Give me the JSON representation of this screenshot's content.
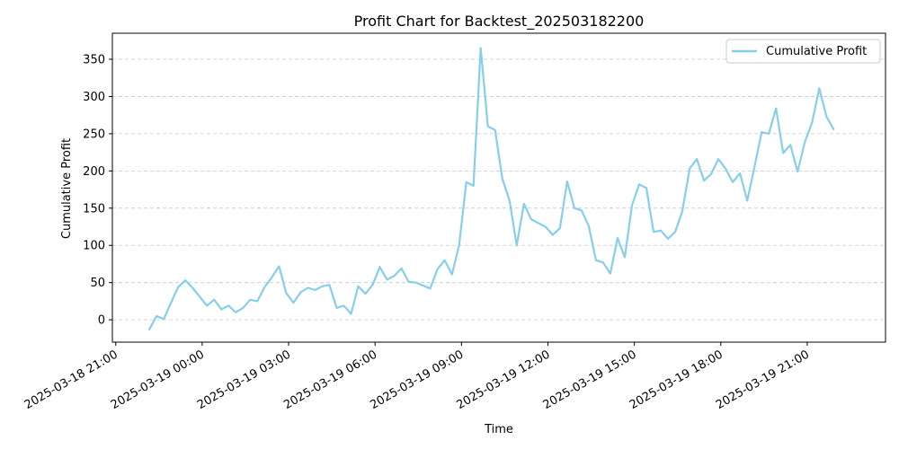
{
  "chart_data": {
    "type": "line",
    "title": "Profit Chart for Backtest_202503182200",
    "xlabel": "Time",
    "ylabel": "Cumulative Profit",
    "ylim": [
      -30,
      385
    ],
    "xlim": [
      "2025-03-18 20:53",
      "2025-03-19 23:43"
    ],
    "yticks": [
      0,
      50,
      100,
      150,
      200,
      250,
      300,
      350
    ],
    "xticks": [
      "2025-03-18 21:00",
      "2025-03-19 00:00",
      "2025-03-19 03:00",
      "2025-03-19 06:00",
      "2025-03-19 09:00",
      "2025-03-19 12:00",
      "2025-03-19 15:00",
      "2025-03-19 18:00",
      "2025-03-19 21:00"
    ],
    "grid": "y-dashed",
    "legend_position": "top-right",
    "line_color": "#87ceeb",
    "series": [
      {
        "name": "Cumulative Profit",
        "x": [
          "2025-03-18 22:10",
          "2025-03-18 22:25",
          "2025-03-18 22:40",
          "2025-03-18 22:55",
          "2025-03-18 23:10",
          "2025-03-18 23:25",
          "2025-03-18 23:40",
          "2025-03-18 23:55",
          "2025-03-19 00:10",
          "2025-03-19 00:25",
          "2025-03-19 00:40",
          "2025-03-19 00:55",
          "2025-03-19 01:10",
          "2025-03-19 01:25",
          "2025-03-19 01:40",
          "2025-03-19 01:55",
          "2025-03-19 02:10",
          "2025-03-19 02:25",
          "2025-03-19 02:40",
          "2025-03-19 02:55",
          "2025-03-19 03:10",
          "2025-03-19 03:25",
          "2025-03-19 03:40",
          "2025-03-19 03:55",
          "2025-03-19 04:10",
          "2025-03-19 04:25",
          "2025-03-19 04:40",
          "2025-03-19 04:55",
          "2025-03-19 05:10",
          "2025-03-19 05:25",
          "2025-03-19 05:40",
          "2025-03-19 05:55",
          "2025-03-19 06:10",
          "2025-03-19 06:25",
          "2025-03-19 06:40",
          "2025-03-19 06:55",
          "2025-03-19 07:10",
          "2025-03-19 07:25",
          "2025-03-19 07:40",
          "2025-03-19 07:55",
          "2025-03-19 08:10",
          "2025-03-19 08:25",
          "2025-03-19 08:40",
          "2025-03-19 08:55",
          "2025-03-19 09:10",
          "2025-03-19 09:25",
          "2025-03-19 09:40",
          "2025-03-19 09:55",
          "2025-03-19 10:10",
          "2025-03-19 10:25",
          "2025-03-19 10:40",
          "2025-03-19 10:55",
          "2025-03-19 11:10",
          "2025-03-19 11:25",
          "2025-03-19 11:40",
          "2025-03-19 11:55",
          "2025-03-19 12:10",
          "2025-03-19 12:25",
          "2025-03-19 12:40",
          "2025-03-19 12:55",
          "2025-03-19 13:10",
          "2025-03-19 13:25",
          "2025-03-19 13:40",
          "2025-03-19 13:55",
          "2025-03-19 14:10",
          "2025-03-19 14:25",
          "2025-03-19 14:40",
          "2025-03-19 14:55",
          "2025-03-19 15:10",
          "2025-03-19 15:25",
          "2025-03-19 15:40",
          "2025-03-19 15:55",
          "2025-03-19 16:10",
          "2025-03-19 16:25",
          "2025-03-19 16:40",
          "2025-03-19 16:55",
          "2025-03-19 17:10",
          "2025-03-19 17:25",
          "2025-03-19 17:40",
          "2025-03-19 17:55",
          "2025-03-19 18:10",
          "2025-03-19 18:25",
          "2025-03-19 18:40",
          "2025-03-19 18:55",
          "2025-03-19 19:10",
          "2025-03-19 19:25",
          "2025-03-19 19:40",
          "2025-03-19 19:55",
          "2025-03-19 20:10",
          "2025-03-19 20:25",
          "2025-03-19 20:40",
          "2025-03-19 20:55",
          "2025-03-19 21:10",
          "2025-03-19 21:25",
          "2025-03-19 21:40",
          "2025-03-19 21:55"
        ],
        "values": [
          -13,
          5,
          1,
          23,
          44,
          53,
          43,
          31,
          19,
          27,
          14,
          19,
          10,
          16,
          27,
          25,
          44,
          57,
          72,
          36,
          23,
          37,
          43,
          40,
          45,
          47,
          16,
          19,
          8,
          45,
          35,
          47,
          71,
          54,
          59,
          69,
          51,
          50,
          46,
          42,
          68,
          80,
          61,
          100,
          185,
          180,
          365,
          260,
          255,
          190,
          160,
          100,
          156,
          135,
          130,
          125,
          114,
          123,
          186,
          150,
          147,
          126,
          80,
          77,
          62,
          110,
          84,
          154,
          182,
          177,
          118,
          120,
          109,
          118,
          146,
          203,
          216,
          187,
          196,
          216,
          203,
          185,
          197,
          160,
          205,
          252,
          250,
          284,
          224,
          235,
          199,
          239,
          265,
          311,
          273,
          256
        ]
      }
    ]
  }
}
